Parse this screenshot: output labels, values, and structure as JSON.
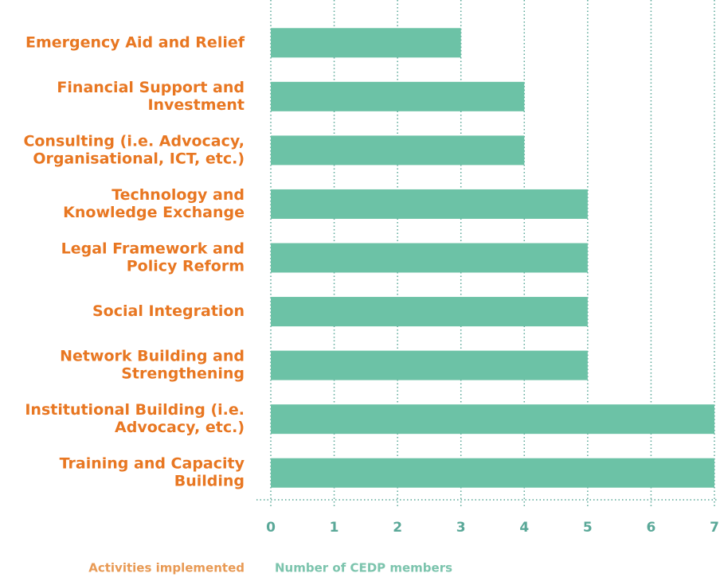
{
  "chart_data": {
    "type": "barh",
    "categories": [
      [
        "Emergency Aid and Relief"
      ],
      [
        "Financial Support and",
        "Investment"
      ],
      [
        "Consulting (i.e. Advocacy,",
        "Organisational, ICT, etc.)"
      ],
      [
        "Technology and",
        "Knowledge Exchange"
      ],
      [
        "Legal Framework and",
        "Policy Reform"
      ],
      [
        "Social Integration"
      ],
      [
        "Network Building and",
        "Strengthening"
      ],
      [
        "Institutional Building (i.e.",
        "Advocacy, etc.)"
      ],
      [
        "Training and Capacity",
        "Building"
      ]
    ],
    "values": [
      3,
      4,
      4,
      5,
      5,
      5,
      5,
      7,
      7
    ],
    "color": "#6cc2a6",
    "xlim": [
      0,
      7
    ],
    "xticks": [
      0,
      1,
      2,
      3,
      4,
      5,
      6,
      7
    ],
    "grid": true,
    "ylabel": "Activities implemented",
    "xlabel": "Number of CEDP members"
  }
}
